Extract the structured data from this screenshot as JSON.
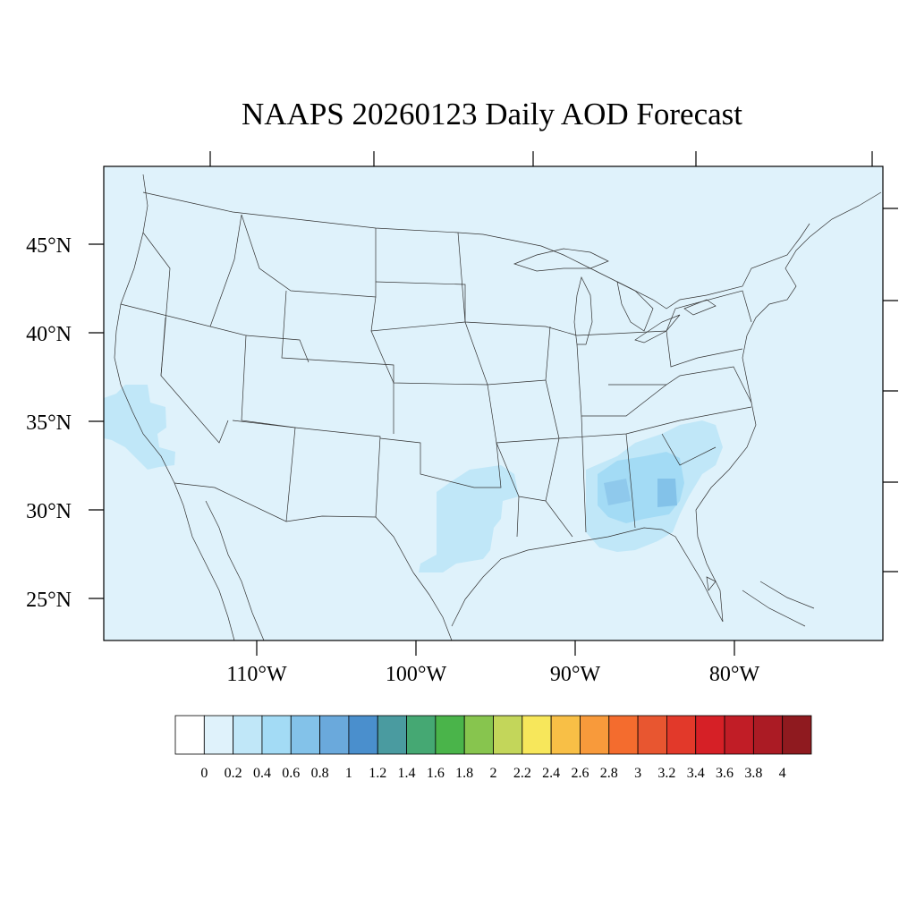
{
  "title": "NAAPS 20260123 Daily AOD Forecast",
  "map": {
    "lat_labels": [
      "45°N",
      "40°N",
      "35°N",
      "30°N",
      "25°N"
    ],
    "lon_labels": [
      "110°W",
      "100°W",
      "90°W",
      "80°W"
    ],
    "background_color": "#dff2fb",
    "aod_regions": [
      {
        "name": "southern-california",
        "level": "0.2-0.4",
        "color": "#c0e7f8"
      },
      {
        "name": "east-texas",
        "level": "0.2-0.4",
        "color": "#c0e7f8"
      },
      {
        "name": "southeast-us",
        "level": "0.2-0.4",
        "color": "#c0e7f8"
      },
      {
        "name": "alabama-georgia",
        "level": "0.4-0.6",
        "color": "#a3dbf5"
      },
      {
        "name": "georgia-core",
        "level": "0.6-0.8",
        "color": "#83c2e9"
      }
    ]
  },
  "colorbar": {
    "colors": [
      "#ffffff",
      "#dff2fb",
      "#c0e7f8",
      "#a3dbf5",
      "#83c2e9",
      "#6aa9dc",
      "#4a8fcd",
      "#4a9ba0",
      "#45a873",
      "#4ab44a",
      "#87c54e",
      "#c3d65a",
      "#f7e75b",
      "#f8bf46",
      "#f89a3b",
      "#f46c2e",
      "#e85630",
      "#e2392a",
      "#d62026",
      "#c11d26",
      "#ab1b24",
      "#8f1a1f"
    ],
    "labels": [
      "0",
      "0.2",
      "0.4",
      "0.6",
      "0.8",
      "1",
      "1.2",
      "1.4",
      "1.6",
      "1.8",
      "2",
      "2.2",
      "2.4",
      "2.6",
      "2.8",
      "3",
      "3.2",
      "3.4",
      "3.6",
      "3.8",
      "4"
    ]
  }
}
